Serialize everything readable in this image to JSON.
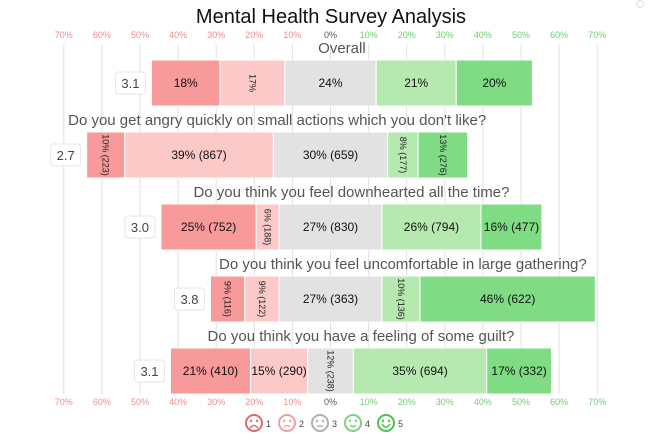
{
  "chart_data": {
    "type": "bar",
    "subtype": "diverging-stacked-likert",
    "title": "Mental Health Survey Analysis",
    "axis": {
      "ticks": [
        -70,
        -60,
        -50,
        -40,
        -30,
        -20,
        -10,
        0,
        10,
        20,
        30,
        40,
        50,
        60,
        70
      ],
      "tick_labels": [
        "70%",
        "60%",
        "50%",
        "40%",
        "30%",
        "20%",
        "10%",
        "0%",
        "10%",
        "20%",
        "30%",
        "40%",
        "50%",
        "60%",
        "70%"
      ],
      "shown_top_and_bottom": true,
      "grid": true
    },
    "colors": {
      "1": "#f99a9a",
      "2": "#fcc9c9",
      "3": "#e2e2e2",
      "4": "#b6e9b0",
      "5": "#7fdb84",
      "negative_tick": "#f28b8b",
      "positive_tick": "#6fcf6f",
      "zero_tick": "#555555"
    },
    "legend": {
      "position": "bottom",
      "entries": [
        {
          "label": "1",
          "icon": "very-sad-face-icon",
          "color": "#e06a6a"
        },
        {
          "label": "2",
          "icon": "sad-face-icon",
          "color": "#f0a0a0"
        },
        {
          "label": "3",
          "icon": "neutral-face-icon",
          "color": "#b0b0b0"
        },
        {
          "label": "4",
          "icon": "smile-face-icon",
          "color": "#7fd07f"
        },
        {
          "label": "5",
          "icon": "happy-face-icon",
          "color": "#4cc24c"
        }
      ]
    },
    "questions": [
      {
        "title": "Overall",
        "score": "3.1",
        "values": [
          18,
          17,
          24,
          21,
          20
        ],
        "labels": [
          "18%",
          "17%",
          "24%",
          "21%",
          "20%"
        ],
        "vertical": [
          false,
          true,
          false,
          false,
          false
        ]
      },
      {
        "title": "Do you get angry quickly on small actions which you don't like?",
        "score": "2.7",
        "values": [
          10,
          39,
          30,
          8,
          13
        ],
        "labels": [
          "10% (223)",
          "39% (867)",
          "30% (659)",
          "8% (177)",
          "13% (276)"
        ],
        "vertical": [
          true,
          false,
          false,
          true,
          true
        ]
      },
      {
        "title": "Do you think you feel downhearted all the time?",
        "score": "3.0",
        "values": [
          25,
          6,
          27,
          26,
          16
        ],
        "labels": [
          "25% (752)",
          "6% (188)",
          "27% (830)",
          "26% (794)",
          "16% (477)"
        ],
        "vertical": [
          false,
          true,
          false,
          false,
          false
        ]
      },
      {
        "title": "Do you think you feel uncomfortable in large gathering?",
        "score": "3.8",
        "values": [
          9,
          9,
          27,
          10,
          46
        ],
        "labels": [
          "9% (116)",
          "9% (122)",
          "27% (363)",
          "10% (136)",
          "46% (622)"
        ],
        "vertical": [
          true,
          true,
          false,
          true,
          false
        ]
      },
      {
        "title": "Do you think you have a feeling of some guilt?",
        "score": "3.1",
        "values": [
          21,
          15,
          12,
          35,
          17
        ],
        "labels": [
          "21% (410)",
          "15% (290)",
          "12% (238)",
          "35% (694)",
          "17% (332)"
        ],
        "vertical": [
          false,
          false,
          true,
          false,
          false
        ]
      }
    ]
  }
}
